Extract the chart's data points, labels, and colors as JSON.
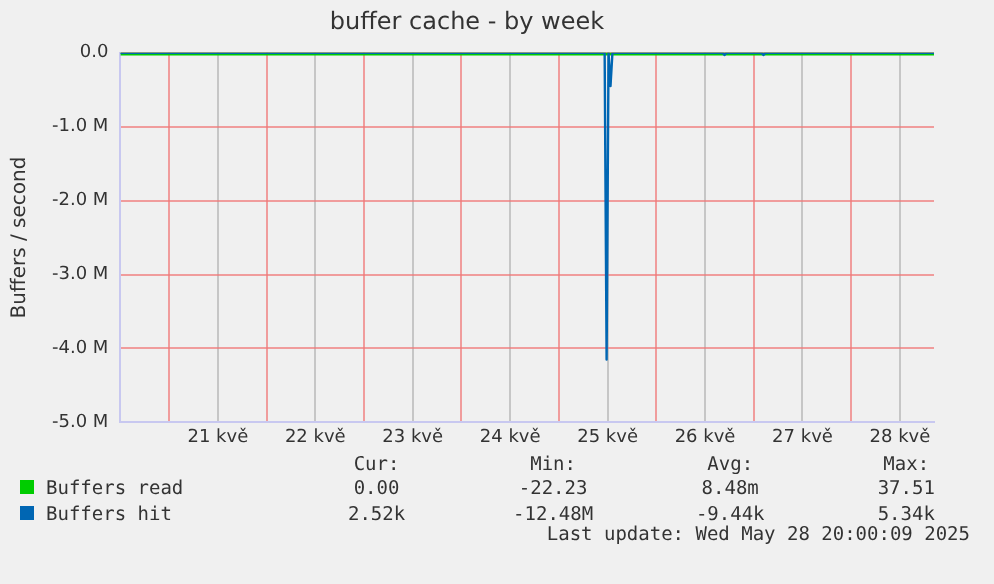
{
  "chart_data": {
    "type": "line",
    "title": "buffer cache - by week",
    "ylabel": "Buffers / second",
    "xlim": [
      20.5,
      28.85
    ],
    "xticks": [
      {
        "value": 21,
        "label": null
      },
      {
        "value": 21.5,
        "label": "21 kvě"
      },
      {
        "value": 22,
        "label": null
      },
      {
        "value": 22.5,
        "label": "22 kvě"
      },
      {
        "value": 23,
        "label": null
      },
      {
        "value": 23.5,
        "label": "23 kvě"
      },
      {
        "value": 24,
        "label": null
      },
      {
        "value": 24.5,
        "label": "24 kvě"
      },
      {
        "value": 25,
        "label": null
      },
      {
        "value": 25.5,
        "label": "25 kvě"
      },
      {
        "value": 26,
        "label": null
      },
      {
        "value": 26.5,
        "label": "26 kvě"
      },
      {
        "value": 27,
        "label": null
      },
      {
        "value": 27.5,
        "label": "27 kvě"
      },
      {
        "value": 28,
        "label": null
      },
      {
        "value": 28.5,
        "label": "28 kvě"
      }
    ],
    "ylim": [
      -5000000,
      0
    ],
    "yticks": [
      {
        "value": 0,
        "label": "0.0"
      },
      {
        "value": -1000000,
        "label": "-1.0 M"
      },
      {
        "value": -2000000,
        "label": "-2.0 M"
      },
      {
        "value": -3000000,
        "label": "-3.0 M"
      },
      {
        "value": -4000000,
        "label": "-4.0 M"
      },
      {
        "value": -5000000,
        "label": "-5.0 M"
      }
    ],
    "grid": true,
    "legend": "bottom",
    "marker": "none",
    "line_style": "solid",
    "series": [
      {
        "name": "Buffers read",
        "color": "#00cc00",
        "x": [
          20.5,
          28.85
        ],
        "values": [
          0,
          0
        ]
      },
      {
        "name": "Buffers hit",
        "color": "#0066b3",
        "x": [
          20.5,
          25.47,
          25.49,
          25.51,
          25.53,
          25.55,
          26.68,
          26.7,
          26.72,
          27.08,
          27.1,
          27.12,
          28.85
        ],
        "values": [
          0,
          0,
          -4150000,
          0,
          -450000,
          0,
          0,
          -30000,
          0,
          0,
          -30000,
          0,
          0
        ]
      }
    ],
    "annotations": [
      "Cur:",
      "Min:",
      "Avg:",
      "Max:",
      "0.00",
      "-22.23",
      "8.48m",
      "37.51",
      "2.52k",
      "-12.48M",
      "-9.44k",
      "5.34k",
      "Last update: Wed May 28 20:00:09 2025"
    ]
  }
}
